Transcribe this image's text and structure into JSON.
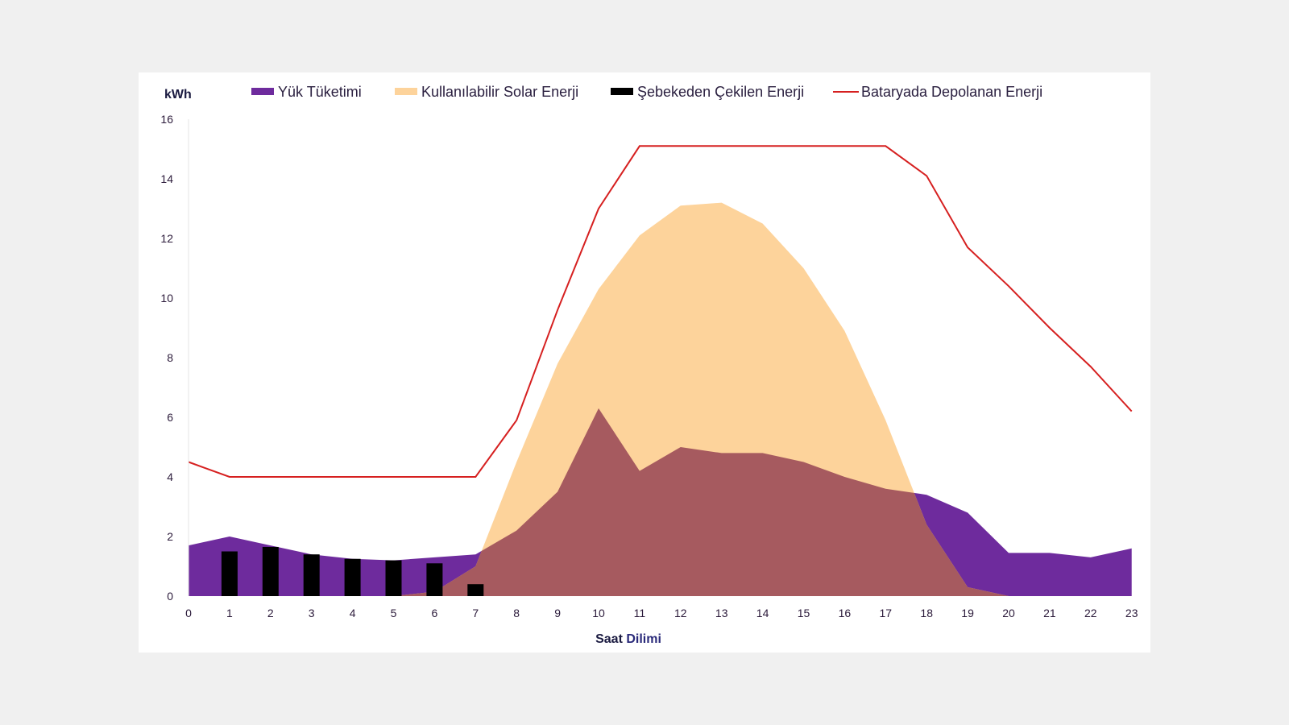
{
  "colors": {
    "load": "#6e2b9d",
    "solar": "#fdd39b",
    "overlap": "#a65a5f",
    "grid": "#000000",
    "battery": "#d62020"
  },
  "chart_data": {
    "type": "area",
    "title": "",
    "ylabel": "kWh",
    "xlabel_part1": "Saat ",
    "xlabel_part2": "Dilimi",
    "ylim": [
      0,
      16
    ],
    "yticks": [
      0,
      2,
      4,
      6,
      8,
      10,
      12,
      14,
      16
    ],
    "x": [
      0,
      1,
      2,
      3,
      4,
      5,
      6,
      7,
      8,
      9,
      10,
      11,
      12,
      13,
      14,
      15,
      16,
      17,
      18,
      19,
      20,
      21,
      22,
      23
    ],
    "legend": [
      "Yük Tüketimi",
      "Kullanılabilir Solar Enerji",
      "Şebekeden Çekilen Enerji",
      "Bataryada Depolanan Enerji"
    ],
    "legend_position": "top",
    "series": [
      {
        "name": "Yük Tüketimi",
        "type": "area",
        "values": [
          1.7,
          2.0,
          1.7,
          1.4,
          1.25,
          1.2,
          1.3,
          1.4,
          2.2,
          3.5,
          6.3,
          4.2,
          5.0,
          4.8,
          4.8,
          4.5,
          4.0,
          3.6,
          3.4,
          2.8,
          1.45,
          1.45,
          1.3,
          1.6
        ]
      },
      {
        "name": "Kullanılabilir Solar Enerji",
        "type": "area",
        "values": [
          0,
          0,
          0,
          0,
          0,
          0,
          0.15,
          1.0,
          4.5,
          7.8,
          10.3,
          12.1,
          13.1,
          13.2,
          12.5,
          11.0,
          8.9,
          5.9,
          2.4,
          0.3,
          0,
          0,
          0,
          0
        ]
      },
      {
        "name": "Şebekeden Çekilen Enerji",
        "type": "bar",
        "values": [
          0,
          1.5,
          1.65,
          1.4,
          1.25,
          1.2,
          1.1,
          0.4,
          0,
          0,
          0,
          0,
          0,
          0,
          0,
          0,
          0,
          0,
          0,
          0,
          0,
          0,
          0,
          0
        ]
      },
      {
        "name": "Bataryada Depolanan Enerji",
        "type": "line",
        "values": [
          4.5,
          4.0,
          4.0,
          4.0,
          4.0,
          4.0,
          4.0,
          4.0,
          5.9,
          9.6,
          13.0,
          15.1,
          15.1,
          15.1,
          15.1,
          15.1,
          15.1,
          15.1,
          14.1,
          11.7,
          10.4,
          9.0,
          7.7,
          6.2
        ]
      }
    ]
  }
}
